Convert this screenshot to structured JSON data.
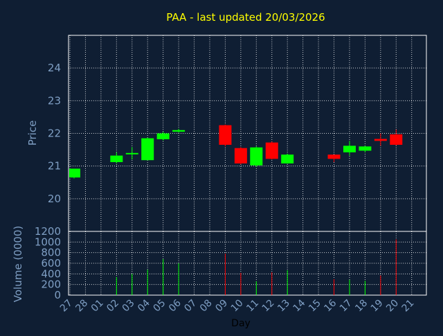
{
  "chart_data": {
    "type": "candlestick",
    "title": "PAA - last updated 20/03/2026",
    "xlabel": "Day",
    "price_ylabel": "Price",
    "volume_ylabel": "Volume (0000)",
    "grid": true,
    "price_ylim": [
      19.0,
      25.0
    ],
    "price_ticks": [
      20,
      21,
      22,
      23,
      24
    ],
    "volume_ylim": [
      0,
      1200
    ],
    "volume_ticks": [
      0,
      200,
      400,
      600,
      800,
      1000,
      1200
    ],
    "x_tick_labels": [
      "27",
      "28",
      "01",
      "02",
      "03",
      "04",
      "05",
      "06",
      "07",
      "08",
      "09",
      "10",
      "11",
      "12",
      "13",
      "14",
      "15",
      "16",
      "17",
      "18",
      "19",
      "20",
      "21"
    ],
    "candles": [
      {
        "x": 0,
        "open": 20.65,
        "close": 20.92,
        "high": 20.92,
        "low": 20.62,
        "volume": 0
      },
      {
        "x": 3,
        "open": 21.12,
        "close": 21.32,
        "high": 21.42,
        "low": 21.08,
        "volume": 340
      },
      {
        "x": 4,
        "open": 21.38,
        "close": 21.4,
        "high": 21.58,
        "low": 21.2,
        "volume": 400
      },
      {
        "x": 5,
        "open": 21.18,
        "close": 21.85,
        "high": 21.87,
        "low": 21.18,
        "volume": 480
      },
      {
        "x": 6,
        "open": 21.82,
        "close": 22.0,
        "high": 22.05,
        "low": 21.78,
        "volume": 680
      },
      {
        "x": 7,
        "open": 22.05,
        "close": 22.1,
        "high": 22.14,
        "low": 22.02,
        "volume": 600
      },
      {
        "x": 10,
        "open": 22.25,
        "close": 21.65,
        "high": 22.27,
        "low": 21.6,
        "volume": 780
      },
      {
        "x": 11,
        "open": 21.55,
        "close": 21.08,
        "high": 21.58,
        "low": 21.05,
        "volume": 420
      },
      {
        "x": 12,
        "open": 21.02,
        "close": 21.57,
        "high": 21.6,
        "low": 20.98,
        "volume": 260
      },
      {
        "x": 13,
        "open": 21.72,
        "close": 21.22,
        "high": 21.75,
        "low": 21.2,
        "volume": 430
      },
      {
        "x": 14,
        "open": 21.08,
        "close": 21.35,
        "high": 21.38,
        "low": 21.07,
        "volume": 470
      },
      {
        "x": 17,
        "open": 21.35,
        "close": 21.22,
        "high": 21.35,
        "low": 21.12,
        "volume": 300
      },
      {
        "x": 18,
        "open": 21.42,
        "close": 21.62,
        "high": 21.77,
        "low": 21.32,
        "volume": 290
      },
      {
        "x": 19,
        "open": 21.47,
        "close": 21.6,
        "high": 21.62,
        "low": 21.42,
        "volume": 270
      },
      {
        "x": 20,
        "open": 21.83,
        "close": 21.77,
        "high": 22.0,
        "low": 21.62,
        "volume": 370
      },
      {
        "x": 21,
        "open": 21.97,
        "close": 21.65,
        "high": 22.12,
        "low": 21.63,
        "volume": 1050
      }
    ],
    "colors": {
      "background": "#0f1e33",
      "axis": "#ffffff",
      "grid": "#ffffff",
      "tick_text": "#7f9fc4",
      "title": "#ffff00",
      "up": "#00ff00",
      "down": "#ff0000"
    }
  }
}
